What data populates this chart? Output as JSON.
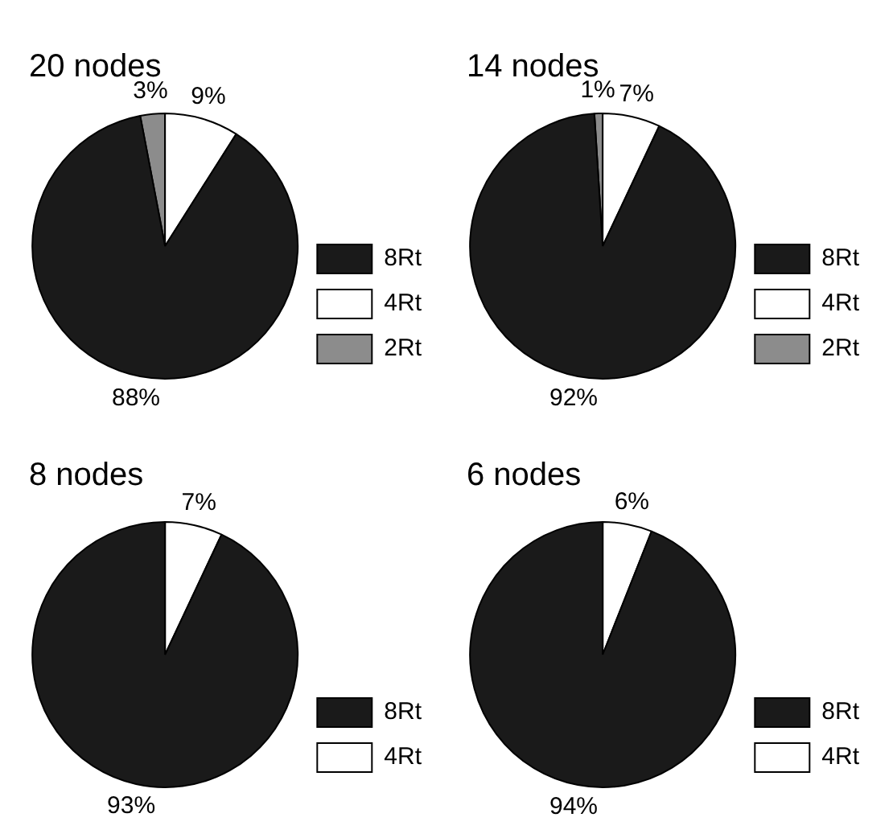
{
  "chart_data": [
    {
      "type": "pie",
      "title": "20 nodes",
      "categories": [
        "8Rt",
        "4Rt",
        "2Rt"
      ],
      "values": [
        88,
        9,
        3
      ],
      "value_labels": [
        "88%",
        "9%",
        "3%"
      ],
      "colors": [
        "#1a1a1a",
        "#ffffff",
        "#8c8c8c"
      ],
      "legend": "bottom right"
    },
    {
      "type": "pie",
      "title": "14 nodes",
      "categories": [
        "8Rt",
        "4Rt",
        "2Rt"
      ],
      "values": [
        92,
        7,
        1
      ],
      "value_labels": [
        "92%",
        "7%",
        "1%"
      ],
      "colors": [
        "#1a1a1a",
        "#ffffff",
        "#8c8c8c"
      ],
      "legend": "bottom right"
    },
    {
      "type": "pie",
      "title": "8 nodes",
      "categories": [
        "8Rt",
        "4Rt"
      ],
      "values": [
        93,
        7
      ],
      "value_labels": [
        "93%",
        "7%"
      ],
      "colors": [
        "#1a1a1a",
        "#ffffff"
      ],
      "legend": "bottom right"
    },
    {
      "type": "pie",
      "title": "6 nodes",
      "categories": [
        "8Rt",
        "4Rt"
      ],
      "values": [
        94,
        6
      ],
      "value_labels": [
        "94%",
        "6%"
      ],
      "colors": [
        "#1a1a1a",
        "#ffffff"
      ],
      "legend": "bottom right"
    }
  ]
}
